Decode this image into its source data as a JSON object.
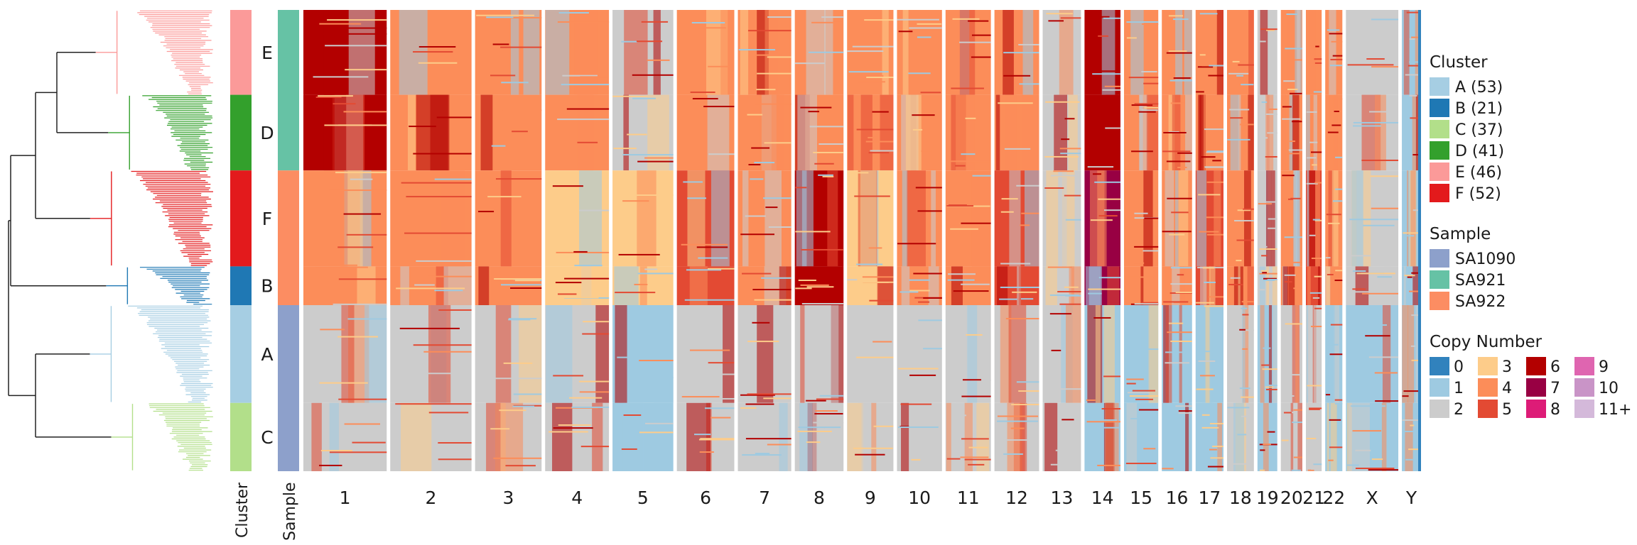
{
  "chart_data": {
    "type": "heatmap",
    "title": "",
    "xlabel": "",
    "ylabel": "",
    "tracks": {
      "cluster_label": "Cluster",
      "sample_label": "Sample"
    },
    "chromosomes": [
      "1",
      "2",
      "3",
      "4",
      "5",
      "6",
      "7",
      "8",
      "9",
      "10",
      "11",
      "12",
      "13",
      "14",
      "15",
      "16",
      "17",
      "18",
      "19",
      "20",
      "21",
      "22",
      "X",
      "Y"
    ],
    "chromosome_weights": [
      248,
      242,
      198,
      190,
      181,
      171,
      159,
      145,
      138,
      134,
      135,
      133,
      114,
      107,
      102,
      90,
      83,
      80,
      59,
      64,
      47,
      51,
      156,
      57
    ],
    "clusters": [
      {
        "id": "E",
        "label": "E (46)",
        "size": 46,
        "color": "#fb9a99"
      },
      {
        "id": "D",
        "label": "D (41)",
        "size": 41,
        "color": "#33a02c"
      },
      {
        "id": "F",
        "label": "F (52)",
        "size": 52,
        "color": "#e31a1c"
      },
      {
        "id": "B",
        "label": "B (21)",
        "size": 21,
        "color": "#1f78b4"
      },
      {
        "id": "A",
        "label": "A (53)",
        "size": 53,
        "color": "#a6cee3"
      },
      {
        "id": "C",
        "label": "C (37)",
        "size": 37,
        "color": "#b2df8a"
      }
    ],
    "row_cluster_order": [
      "E",
      "D",
      "F",
      "B",
      "A",
      "C"
    ],
    "sample_blocks": [
      {
        "sample": "SA921",
        "clusters": [
          "E",
          "D"
        ]
      },
      {
        "sample": "SA922",
        "clusters": [
          "F",
          "B"
        ]
      },
      {
        "sample": "SA1090",
        "clusters": [
          "A",
          "C"
        ]
      }
    ],
    "legend": {
      "cluster": {
        "title": "Cluster",
        "items": [
          {
            "label": "A (53)",
            "color": "#a6cee3"
          },
          {
            "label": "B (21)",
            "color": "#1f78b4"
          },
          {
            "label": "C (37)",
            "color": "#b2df8a"
          },
          {
            "label": "D (41)",
            "color": "#33a02c"
          },
          {
            "label": "E (46)",
            "color": "#fb9a99"
          },
          {
            "label": "F (52)",
            "color": "#e31a1c"
          }
        ]
      },
      "sample": {
        "title": "Sample",
        "items": [
          {
            "label": "SA1090",
            "color": "#8da0cb"
          },
          {
            "label": "SA921",
            "color": "#66c2a5"
          },
          {
            "label": "SA922",
            "color": "#fc8d62"
          }
        ]
      },
      "copy_number": {
        "title": "Copy Number",
        "items": [
          {
            "label": "0",
            "color": "#3182bd"
          },
          {
            "label": "1",
            "color": "#9ecae1"
          },
          {
            "label": "2",
            "color": "#cccccc"
          },
          {
            "label": "3",
            "color": "#fdcc8a"
          },
          {
            "label": "4",
            "color": "#fc8d59"
          },
          {
            "label": "5",
            "color": "#e34a33"
          },
          {
            "label": "6",
            "color": "#b30000"
          },
          {
            "label": "7",
            "color": "#980043"
          },
          {
            "label": "8",
            "color": "#dd1c77"
          },
          {
            "label": "9",
            "color": "#df65b0"
          },
          {
            "label": "10",
            "color": "#c994c7"
          },
          {
            "label": "11+",
            "color": "#d4b9da"
          }
        ]
      }
    },
    "dominant_copy_number": {
      "SA921": {
        "1": 6,
        "2": 4,
        "3": 4,
        "4": 4,
        "5": 2,
        "6": 4,
        "7": 4,
        "8": 4,
        "9": 4,
        "10": 4,
        "11": 4,
        "12": 4,
        "13": 2,
        "14": 6,
        "15": 4,
        "16": 4,
        "17": 4,
        "18": 4,
        "19": 2,
        "20": 4,
        "21": 4,
        "22": 4,
        "X": 2,
        "Y": 1
      },
      "SA922": {
        "1": 4,
        "2": 4,
        "3": 4,
        "4": 3,
        "5": 3,
        "6": 5,
        "7": 4,
        "8": 6,
        "9": 3,
        "10": 4,
        "11": 4,
        "12": 5,
        "13": 2,
        "14": 7,
        "15": 4,
        "16": 4,
        "17": 5,
        "18": 4,
        "19": 2,
        "20": 4,
        "21": 5,
        "22": 4,
        "X": 2,
        "Y": 1
      },
      "SA1090": {
        "1": 2,
        "2": 2,
        "3": 2,
        "4": 2,
        "5": 1,
        "6": 2,
        "7": 2,
        "8": 2,
        "9": 2,
        "10": 2,
        "11": 2,
        "12": 2,
        "13": 2,
        "14": 1,
        "15": 1,
        "16": 1,
        "17": 1,
        "18": 2,
        "19": 1,
        "20": 2,
        "21": 2,
        "22": 1,
        "X": 1,
        "Y": 1
      }
    }
  }
}
